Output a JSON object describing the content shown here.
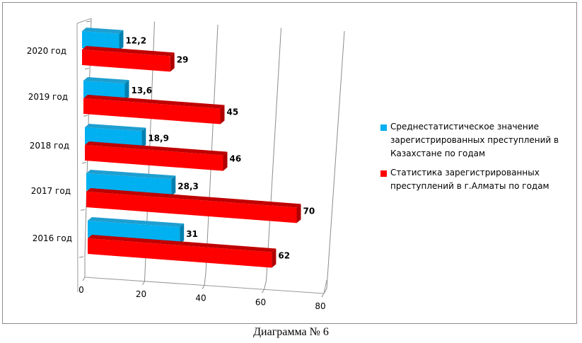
{
  "chart_data": {
    "type": "bar",
    "orientation": "horizontal",
    "style": "3d",
    "categories": [
      "2016 год",
      "2017 год",
      "2018 год",
      "2019 год",
      "2020 год"
    ],
    "series": [
      {
        "name": "Среднестатистическое значение зарегистрированных преступлений в Казахстане по годам",
        "color": "#00b0f0",
        "values": [
          31,
          28.3,
          18.9,
          13.6,
          12.2
        ],
        "labels": [
          "31",
          "28,3",
          "18,9",
          "13,6",
          "12,2"
        ]
      },
      {
        "name": "Статистика зарегистрированных преступлений в г.Алматы по годам",
        "color": "#ff0000",
        "values": [
          62,
          70,
          46,
          45,
          29
        ],
        "labels": [
          "62",
          "70",
          "46",
          "45",
          "29"
        ]
      }
    ],
    "xlim": [
      0,
      80
    ],
    "xticks": [
      "0",
      "20",
      "40",
      "60",
      "80"
    ],
    "grid": true,
    "legend": "right",
    "title": "",
    "xlabel": "",
    "ylabel": ""
  },
  "legend": {
    "items": [
      {
        "label_lines": [
          "Среднестатистическое значение",
          "зарегистрированных преступлений в",
          "Казахстане по годам"
        ]
      },
      {
        "label_lines": [
          "Статистика зарегистрированных",
          "преступлений в г.Алматы по годам"
        ]
      }
    ]
  },
  "caption": "Диаграмма № 6"
}
